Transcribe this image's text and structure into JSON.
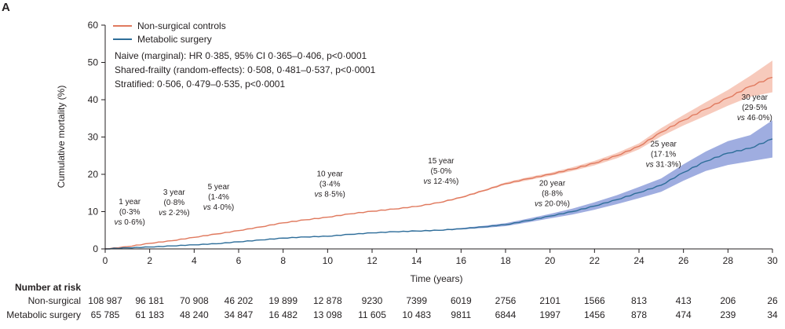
{
  "panel_label": "A",
  "chart_data": {
    "type": "line",
    "xlabel": "Time (years)",
    "ylabel": "Cumulative mortality (%)",
    "xlim": [
      0,
      30
    ],
    "ylim": [
      0,
      60
    ],
    "x_ticks": [
      "0",
      "2",
      "4",
      "6",
      "8",
      "10",
      "12",
      "14",
      "16",
      "18",
      "20",
      "22",
      "24",
      "26",
      "28",
      "30"
    ],
    "y_ticks": [
      "0",
      "10",
      "20",
      "30",
      "40",
      "50",
      "60"
    ],
    "legend_position": "top-left",
    "stats": [
      "Naive (marginal): HR 0·385, 95% CI 0·365–0·406, p<0·0001",
      "Shared-frailty (random-effects): 0·508, 0·481–0·537, p<0·0001",
      "Stratified: 0·506, 0·479–0·535, p<0·0001"
    ],
    "series": [
      {
        "name": "Non-surgical controls",
        "color": "#e07a5f",
        "band_color": "#f4b8a6",
        "x": [
          0,
          1,
          2,
          3,
          4,
          5,
          6,
          7,
          8,
          9,
          10,
          11,
          12,
          13,
          14,
          15,
          16,
          17,
          18,
          19,
          20,
          21,
          22,
          23,
          24,
          25,
          26,
          27,
          28,
          29,
          30
        ],
        "y": [
          0,
          0.6,
          1.5,
          2.2,
          3.1,
          4.0,
          4.9,
          5.9,
          7.0,
          7.8,
          8.5,
          9.4,
          10.1,
          10.7,
          11.4,
          12.4,
          13.8,
          15.6,
          17.5,
          18.8,
          20.0,
          21.4,
          23.0,
          25.0,
          27.5,
          31.3,
          34.5,
          37.5,
          40.5,
          43.6,
          46.0
        ],
        "lower": [
          0,
          0.55,
          1.4,
          2.1,
          3.0,
          3.9,
          4.8,
          5.8,
          6.9,
          7.7,
          8.4,
          9.3,
          10.0,
          10.6,
          11.3,
          12.3,
          13.6,
          15.4,
          17.2,
          18.4,
          19.6,
          20.9,
          22.4,
          24.3,
          26.7,
          30.2,
          33.1,
          35.7,
          38.4,
          40.8,
          42.0
        ],
        "upper": [
          0,
          0.65,
          1.6,
          2.3,
          3.2,
          4.1,
          5.0,
          6.0,
          7.1,
          7.9,
          8.6,
          9.5,
          10.2,
          10.8,
          11.5,
          12.5,
          14.0,
          15.8,
          17.8,
          19.2,
          20.4,
          21.9,
          23.6,
          25.7,
          28.3,
          32.4,
          35.9,
          39.3,
          42.6,
          46.4,
          50.5
        ]
      },
      {
        "name": "Metabolic surgery",
        "color": "#2e6e99",
        "band_color": "#7f92d6",
        "x": [
          0,
          1,
          2,
          3,
          4,
          5,
          6,
          7,
          8,
          9,
          10,
          11,
          12,
          13,
          14,
          15,
          16,
          17,
          18,
          19,
          20,
          21,
          22,
          23,
          24,
          25,
          26,
          27,
          28,
          29,
          30
        ],
        "y": [
          0,
          0.3,
          0.5,
          0.8,
          1.1,
          1.4,
          1.9,
          2.4,
          2.9,
          3.2,
          3.4,
          3.9,
          4.3,
          4.6,
          4.8,
          5.0,
          5.4,
          5.9,
          6.5,
          7.6,
          8.8,
          10.0,
          11.5,
          13.2,
          15.1,
          17.1,
          20.5,
          23.5,
          25.7,
          27.0,
          29.5
        ],
        "lower": [
          0,
          0.28,
          0.47,
          0.77,
          1.06,
          1.35,
          1.84,
          2.33,
          2.82,
          3.1,
          3.3,
          3.8,
          4.2,
          4.5,
          4.7,
          4.9,
          5.2,
          5.6,
          6.1,
          7.1,
          8.2,
          9.2,
          10.5,
          12.0,
          13.6,
          15.3,
          18.3,
          20.9,
          22.5,
          23.5,
          24.5
        ],
        "upper": [
          0,
          0.32,
          0.53,
          0.83,
          1.14,
          1.45,
          1.96,
          2.47,
          2.98,
          3.3,
          3.5,
          4.0,
          4.4,
          4.7,
          4.9,
          5.1,
          5.6,
          6.2,
          6.9,
          8.1,
          9.4,
          10.8,
          12.5,
          14.4,
          16.6,
          18.9,
          22.7,
          26.1,
          28.9,
          30.5,
          34.5
        ]
      }
    ],
    "annotations": [
      {
        "lines": [
          "1 year",
          "(0·3%",
          "vs 0·6%)"
        ],
        "x": 1.1,
        "y": 12
      },
      {
        "lines": [
          "3 year",
          "(0·8%",
          "vs 2·2%)"
        ],
        "x": 3.1,
        "y": 14.5
      },
      {
        "lines": [
          "5 year",
          "(1·4%",
          "vs 4·0%)"
        ],
        "x": 5.1,
        "y": 16
      },
      {
        "lines": [
          "10 year",
          "(3·4%",
          "vs 8·5%)"
        ],
        "x": 10.1,
        "y": 19.5
      },
      {
        "lines": [
          "15 year",
          "(5·0%",
          "vs 12·4%)"
        ],
        "x": 15.1,
        "y": 23
      },
      {
        "lines": [
          "20 year",
          "(8·8%",
          "vs 20·0%)"
        ],
        "x": 20.1,
        "y": 17
      },
      {
        "lines": [
          "25 year",
          "(17·1%",
          "vs 31·3%)"
        ],
        "x": 25.1,
        "y": 27.5
      },
      {
        "lines": [
          "30 year",
          "(29·5%",
          "vs 46·0%)"
        ],
        "x": 29.2,
        "y": 40
      }
    ],
    "risk_table": {
      "title": "Number at risk",
      "times": [
        0,
        2,
        4,
        6,
        8,
        10,
        12,
        14,
        16,
        18,
        20,
        22,
        24,
        26,
        28,
        30
      ],
      "rows": [
        {
          "label": "Non-surgical",
          "values": [
            "108 987",
            "96 181",
            "70 908",
            "46 202",
            "19 899",
            "12 878",
            "9230",
            "7399",
            "6019",
            "2756",
            "2101",
            "1566",
            "813",
            "413",
            "206",
            "26"
          ]
        },
        {
          "label": "Metabolic surgery",
          "values": [
            "65 785",
            "61 183",
            "48 240",
            "34 847",
            "16 482",
            "13 098",
            "11 605",
            "10 483",
            "9811",
            "6844",
            "1997",
            "1456",
            "878",
            "474",
            "239",
            "34"
          ]
        }
      ]
    }
  }
}
